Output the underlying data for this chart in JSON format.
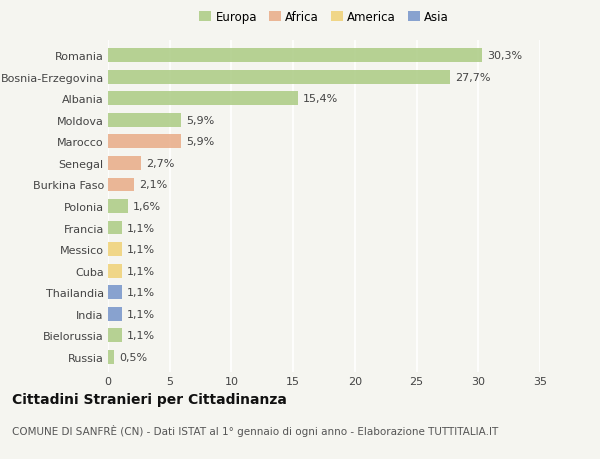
{
  "categories": [
    "Romania",
    "Bosnia-Erzegovina",
    "Albania",
    "Moldova",
    "Marocco",
    "Senegal",
    "Burkina Faso",
    "Polonia",
    "Francia",
    "Messico",
    "Cuba",
    "Thailandia",
    "India",
    "Bielorussia",
    "Russia"
  ],
  "values": [
    30.3,
    27.7,
    15.4,
    5.9,
    5.9,
    2.7,
    2.1,
    1.6,
    1.1,
    1.1,
    1.1,
    1.1,
    1.1,
    1.1,
    0.5
  ],
  "labels": [
    "30,3%",
    "27,7%",
    "15,4%",
    "5,9%",
    "5,9%",
    "2,7%",
    "2,1%",
    "1,6%",
    "1,1%",
    "1,1%",
    "1,1%",
    "1,1%",
    "1,1%",
    "1,1%",
    "0,5%"
  ],
  "continent": [
    "Europa",
    "Europa",
    "Europa",
    "Europa",
    "Africa",
    "Africa",
    "Africa",
    "Europa",
    "Europa",
    "America",
    "America",
    "Asia",
    "Asia",
    "Europa",
    "Europa"
  ],
  "colors": {
    "Europa": "#a8c97f",
    "Africa": "#e8a882",
    "America": "#f0d070",
    "Asia": "#7090c8"
  },
  "legend_order": [
    "Europa",
    "Africa",
    "America",
    "Asia"
  ],
  "xlim": [
    0,
    35
  ],
  "xticks": [
    0,
    5,
    10,
    15,
    20,
    25,
    30,
    35
  ],
  "title": "Cittadini Stranieri per Cittadinanza",
  "subtitle": "COMUNE DI SANFRÈ (CN) - Dati ISTAT al 1° gennaio di ogni anno - Elaborazione TUTTITALIA.IT",
  "background_color": "#f5f5f0",
  "bar_height": 0.65,
  "grid_color": "#ffffff",
  "title_fontsize": 10,
  "subtitle_fontsize": 7.5,
  "label_fontsize": 8,
  "tick_fontsize": 8,
  "legend_fontsize": 8.5
}
